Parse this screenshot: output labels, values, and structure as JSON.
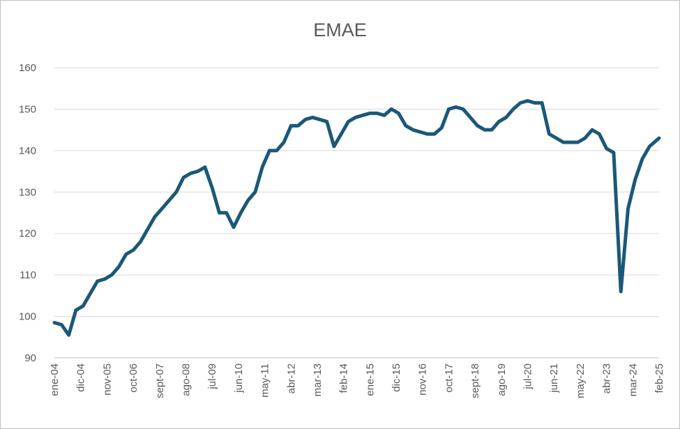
{
  "chart_data": {
    "type": "line",
    "title": "EMAE",
    "xlabel": "",
    "ylabel": "",
    "ylim": [
      90,
      160
    ],
    "y_ticks": [
      90,
      100,
      110,
      120,
      130,
      140,
      150,
      160
    ],
    "x_tick_labels": [
      "ene-04",
      "dic-04",
      "nov-05",
      "oct-06",
      "sept-07",
      "ago-08",
      "jul-09",
      "jun-10",
      "may-11",
      "abr-12",
      "mar-13",
      "feb-14",
      "ene-15",
      "dic-15",
      "nov-16",
      "oct-17",
      "sept-18",
      "ago-19",
      "jul-20",
      "jun-21",
      "may-22",
      "abr-23",
      "mar-24",
      "feb-25"
    ],
    "grid": true,
    "legend": "none",
    "color": "#1b5878",
    "series": [
      {
        "x": [
          "2004-01",
          "2004-04",
          "2004-07",
          "2004-10",
          "2005-01",
          "2005-04",
          "2005-07",
          "2005-10",
          "2006-01",
          "2006-04",
          "2006-07",
          "2006-10",
          "2007-01",
          "2007-04",
          "2007-07",
          "2007-10",
          "2008-01",
          "2008-04",
          "2008-07",
          "2008-10",
          "2009-01",
          "2009-04",
          "2009-07",
          "2009-10",
          "2010-01",
          "2010-04",
          "2010-07",
          "2010-10",
          "2011-01",
          "2011-04",
          "2011-07",
          "2011-10",
          "2012-01",
          "2012-04",
          "2012-07",
          "2012-10",
          "2013-01",
          "2013-04",
          "2013-07",
          "2013-10",
          "2014-01",
          "2014-04",
          "2014-07",
          "2014-10",
          "2015-01",
          "2015-04",
          "2015-07",
          "2015-10",
          "2016-01",
          "2016-04",
          "2016-07",
          "2016-10",
          "2017-01",
          "2017-04",
          "2017-07",
          "2017-10",
          "2018-01",
          "2018-04",
          "2018-07",
          "2018-10",
          "2019-01",
          "2019-04",
          "2019-07",
          "2019-10",
          "2020-01",
          "2020-04",
          "2020-07",
          "2020-10",
          "2021-01",
          "2021-04",
          "2021-07",
          "2021-10",
          "2022-01",
          "2022-04",
          "2022-07",
          "2022-10",
          "2023-01",
          "2023-04",
          "2023-07",
          "2023-10",
          "2024-01",
          "2024-04",
          "2024-07",
          "2024-10",
          "2025-02"
        ],
        "values": [
          98.5,
          98,
          95.5,
          101.5,
          102.5,
          105.5,
          108.5,
          109,
          110,
          112,
          115,
          116,
          118,
          121,
          124,
          126,
          128,
          130,
          133.5,
          134.5,
          135,
          136,
          131,
          125,
          125,
          121.5,
          125,
          128,
          130,
          136,
          140,
          140,
          142,
          146,
          146,
          147.5,
          148,
          147.5,
          147,
          141,
          144,
          147,
          148,
          148.5,
          149,
          149,
          148.5,
          150,
          149,
          146,
          145,
          144.5,
          144,
          144,
          145.5,
          150,
          150.5,
          150,
          148,
          146,
          145,
          145,
          147,
          148,
          150,
          151.5,
          152,
          151.5,
          151.5,
          144,
          143,
          142,
          142,
          142,
          143,
          145,
          144,
          140.5,
          139.5,
          106,
          126,
          133,
          138,
          141,
          143
        ]
      }
    ]
  }
}
